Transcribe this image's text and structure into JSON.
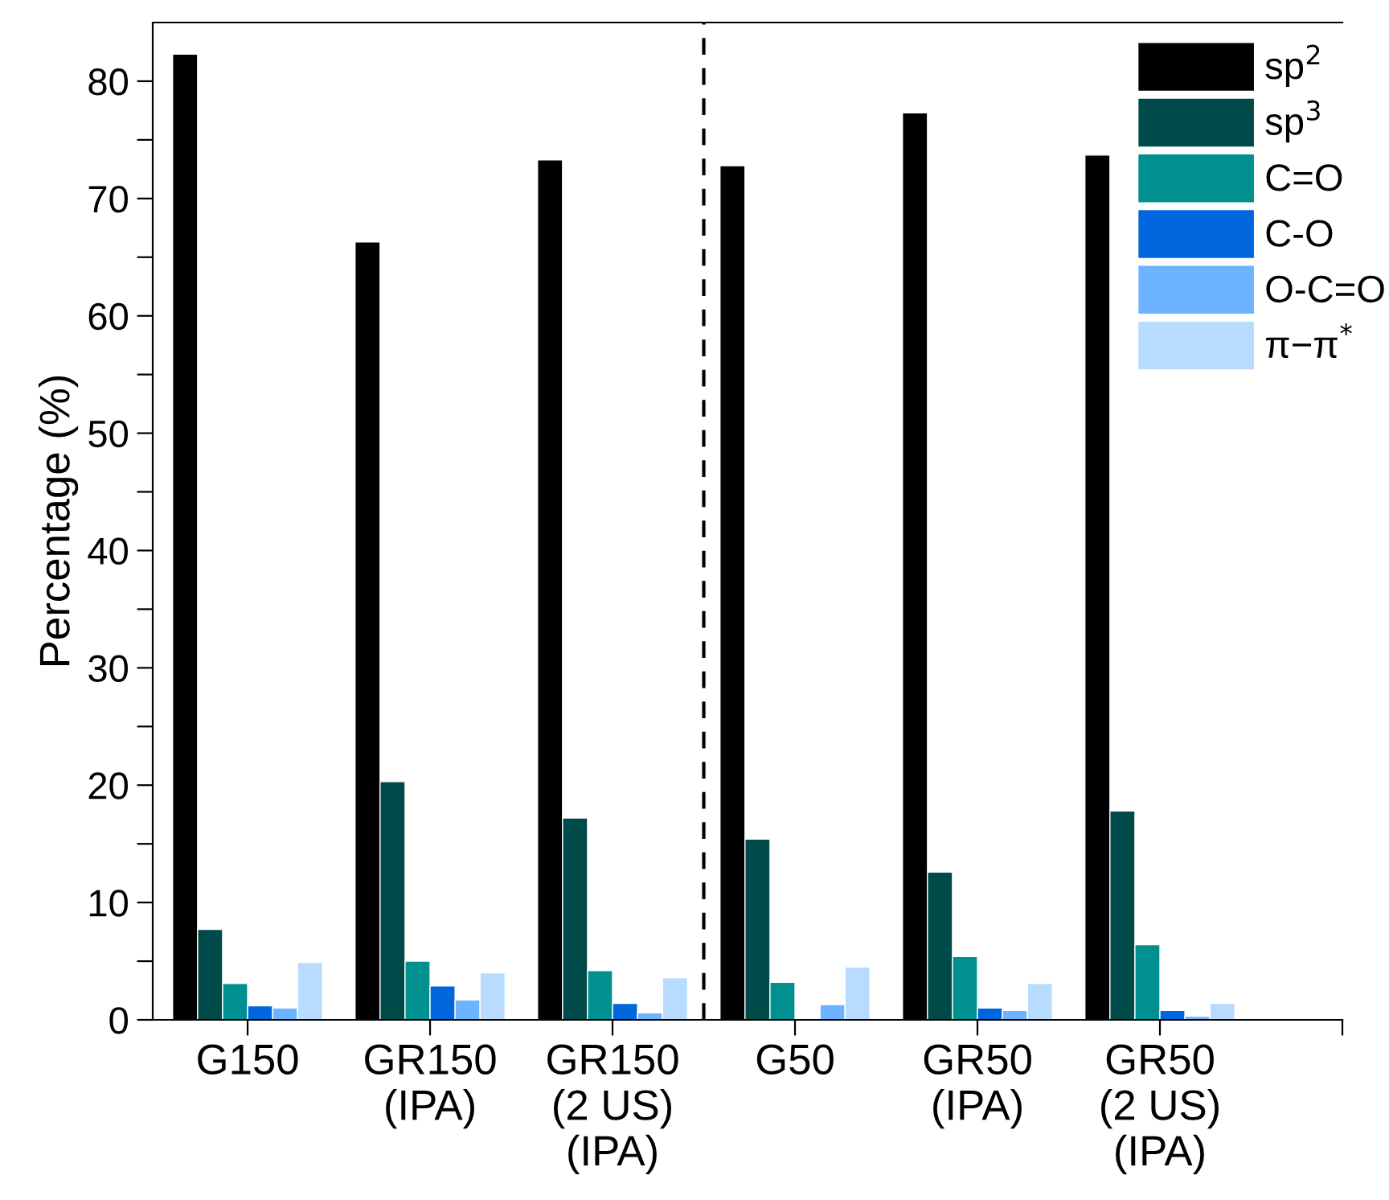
{
  "chart_data": {
    "type": "bar",
    "ylabel": "Percentage (%)",
    "categories": [
      "G150",
      "GR150\n(IPA)",
      "GR150\n(2 US)\n(IPA)",
      "G50",
      "GR50\n(IPA)",
      "GR50\n(2 US)\n(IPA)",
      null
    ],
    "series": [
      {
        "name": "sp$^{2}$",
        "color": "#000000",
        "values": [
          82.3,
          66.3,
          73.3,
          72.8,
          77.3,
          73.7,
          null
        ]
      },
      {
        "name": "sp$^{3}$",
        "color": "#004a4a",
        "values": [
          7.7,
          20.3,
          17.2,
          15.4,
          12.6,
          17.8,
          null
        ]
      },
      {
        "name": "C=O",
        "color": "#009090",
        "values": [
          3.1,
          5.0,
          4.2,
          3.2,
          5.4,
          6.4,
          null
        ]
      },
      {
        "name": "C-O",
        "color": "#0066dd",
        "values": [
          1.2,
          2.9,
          1.4,
          null,
          1.0,
          0.8,
          null
        ]
      },
      {
        "name": "O-C=O",
        "color": "#6cb4ff",
        "values": [
          1.0,
          1.7,
          0.6,
          1.3,
          0.8,
          0.3,
          null
        ]
      },
      {
        "name": "π−π$^{*}$",
        "color": "#b8dcff",
        "values": [
          4.9,
          4.0,
          3.6,
          4.5,
          3.1,
          1.4,
          null
        ]
      }
    ],
    "ylim": [
      0,
      85
    ],
    "yticks": [
      0,
      {
        "value": 5,
        "label": null
      },
      10,
      {
        "value": 15,
        "label": null
      },
      20,
      {
        "value": 25,
        "label": null
      },
      30,
      {
        "value": 35,
        "label": null
      },
      40,
      {
        "value": 45,
        "label": null
      },
      50,
      {
        "value": 55,
        "label": null
      },
      60,
      {
        "value": 65,
        "label": null
      },
      70,
      {
        "value": 75,
        "label": null
      },
      80
    ],
    "legend": "top right",
    "grid": false
  }
}
